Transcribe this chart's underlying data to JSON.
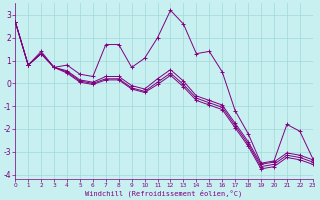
{
  "xlabel": "Windchill (Refroidissement éolien,°C)",
  "bg_color": "#c8f0f0",
  "grid_color": "#a0d8d8",
  "line_color": "#800080",
  "x_min": 0,
  "x_max": 23,
  "y_min": -4.2,
  "y_max": 3.5,
  "yticks": [
    -4,
    -3,
    -2,
    -1,
    0,
    1,
    2,
    3
  ],
  "series": [
    [
      2.7,
      0.8,
      1.4,
      0.7,
      0.8,
      0.4,
      0.3,
      1.7,
      1.7,
      0.7,
      1.1,
      2.0,
      3.2,
      2.6,
      1.3,
      1.4,
      0.5,
      -1.2,
      -2.2,
      -3.5,
      -3.4,
      -1.8,
      -2.1,
      -3.3
    ],
    [
      2.7,
      0.8,
      1.3,
      0.7,
      0.55,
      0.15,
      0.05,
      0.3,
      0.3,
      -0.1,
      -0.25,
      0.2,
      0.6,
      0.1,
      -0.55,
      -0.75,
      -0.95,
      -1.75,
      -2.55,
      -3.55,
      -3.45,
      -3.05,
      -3.15,
      -3.35
    ],
    [
      2.7,
      0.8,
      1.3,
      0.7,
      0.5,
      0.1,
      0.0,
      0.2,
      0.2,
      -0.2,
      -0.35,
      0.05,
      0.45,
      -0.05,
      -0.65,
      -0.85,
      -1.05,
      -1.85,
      -2.65,
      -3.65,
      -3.55,
      -3.15,
      -3.25,
      -3.45
    ],
    [
      2.7,
      0.8,
      1.3,
      0.7,
      0.45,
      0.05,
      -0.05,
      0.15,
      0.15,
      -0.25,
      -0.4,
      -0.05,
      0.35,
      -0.15,
      -0.75,
      -0.95,
      -1.15,
      -1.95,
      -2.75,
      -3.75,
      -3.65,
      -3.25,
      -3.35,
      -3.55
    ]
  ]
}
